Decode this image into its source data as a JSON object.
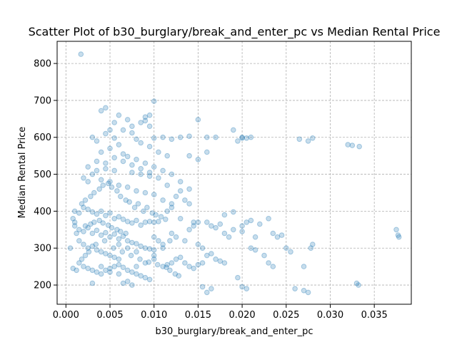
{
  "chart_data": {
    "type": "scatter",
    "title": "Scatter Plot of b30_burglary/break_and_enter_pc vs Median Rental Price",
    "xlabel": "b30_burglary/break_and_enter_pc",
    "ylabel": "Median Rental Price",
    "xlim": [
      -0.001,
      0.0392
    ],
    "ylim": [
      148,
      860
    ],
    "xticks": [
      0.0,
      0.005,
      0.01,
      0.015,
      0.02,
      0.025,
      0.03,
      0.035
    ],
    "xtick_labels": [
      "0.000",
      "0.005",
      "0.010",
      "0.015",
      "0.020",
      "0.025",
      "0.030",
      "0.035"
    ],
    "yticks": [
      200,
      300,
      400,
      500,
      600,
      700,
      800
    ],
    "ytick_labels": [
      "200",
      "300",
      "400",
      "500",
      "600",
      "700",
      "800"
    ],
    "grid": true,
    "color": "#1f77b4",
    "points": [
      [
        0.0017,
        825
      ],
      [
        0.01,
        698
      ],
      [
        0.0045,
        680
      ],
      [
        0.004,
        672
      ],
      [
        0.006,
        660
      ],
      [
        0.009,
        655
      ],
      [
        0.007,
        648
      ],
      [
        0.0085,
        640
      ],
      [
        0.0095,
        630
      ],
      [
        0.005,
        620
      ],
      [
        0.0075,
        612
      ],
      [
        0.003,
        600
      ],
      [
        0.0055,
        598
      ],
      [
        0.008,
        595
      ],
      [
        0.01,
        598
      ],
      [
        0.011,
        600
      ],
      [
        0.012,
        595
      ],
      [
        0.013,
        600
      ],
      [
        0.014,
        603
      ],
      [
        0.016,
        600
      ],
      [
        0.015,
        648
      ],
      [
        0.017,
        600
      ],
      [
        0.02,
        598
      ],
      [
        0.021,
        600
      ],
      [
        0.0195,
        590
      ],
      [
        0.028,
        598
      ],
      [
        0.0275,
        590
      ],
      [
        0.0325,
        578
      ],
      [
        0.0333,
        575
      ],
      [
        0.019,
        620
      ],
      [
        0.006,
        580
      ],
      [
        0.005,
        570
      ],
      [
        0.004,
        560
      ],
      [
        0.0065,
        555
      ],
      [
        0.007,
        548
      ],
      [
        0.008,
        540
      ],
      [
        0.009,
        530
      ],
      [
        0.01,
        520
      ],
      [
        0.0035,
        535
      ],
      [
        0.0025,
        520
      ],
      [
        0.0045,
        515
      ],
      [
        0.0055,
        510
      ],
      [
        0.0075,
        505
      ],
      [
        0.0085,
        500
      ],
      [
        0.0095,
        495
      ],
      [
        0.011,
        510
      ],
      [
        0.012,
        500
      ],
      [
        0.013,
        480
      ],
      [
        0.014,
        460
      ],
      [
        0.003,
        500
      ],
      [
        0.002,
        490
      ],
      [
        0.004,
        485
      ],
      [
        0.005,
        480
      ],
      [
        0.006,
        470
      ],
      [
        0.007,
        465
      ],
      [
        0.008,
        455
      ],
      [
        0.009,
        450
      ],
      [
        0.01,
        445
      ],
      [
        0.011,
        430
      ],
      [
        0.012,
        420
      ],
      [
        0.001,
        400
      ],
      [
        0.0015,
        395
      ],
      [
        0.002,
        410
      ],
      [
        0.0025,
        405
      ],
      [
        0.003,
        398
      ],
      [
        0.0035,
        392
      ],
      [
        0.004,
        400
      ],
      [
        0.0045,
        388
      ],
      [
        0.005,
        395
      ],
      [
        0.0055,
        380
      ],
      [
        0.006,
        385
      ],
      [
        0.0065,
        378
      ],
      [
        0.007,
        372
      ],
      [
        0.0075,
        368
      ],
      [
        0.008,
        375
      ],
      [
        0.0085,
        362
      ],
      [
        0.009,
        370
      ],
      [
        0.0095,
        372
      ],
      [
        0.01,
        370
      ],
      [
        0.0105,
        372
      ],
      [
        0.001,
        360
      ],
      [
        0.0015,
        350
      ],
      [
        0.002,
        345
      ],
      [
        0.0025,
        355
      ],
      [
        0.003,
        340
      ],
      [
        0.0035,
        348
      ],
      [
        0.004,
        335
      ],
      [
        0.0045,
        342
      ],
      [
        0.005,
        330
      ],
      [
        0.0055,
        338
      ],
      [
        0.006,
        325
      ],
      [
        0.0065,
        332
      ],
      [
        0.007,
        320
      ],
      [
        0.0075,
        315
      ],
      [
        0.008,
        312
      ],
      [
        0.0085,
        305
      ],
      [
        0.009,
        300
      ],
      [
        0.0095,
        298
      ],
      [
        0.01,
        295
      ],
      [
        0.011,
        300
      ],
      [
        0.0015,
        320
      ],
      [
        0.002,
        310
      ],
      [
        0.0025,
        300
      ],
      [
        0.003,
        305
      ],
      [
        0.0035,
        295
      ],
      [
        0.004,
        290
      ],
      [
        0.0045,
        285
      ],
      [
        0.005,
        280
      ],
      [
        0.0055,
        275
      ],
      [
        0.006,
        270
      ],
      [
        0.002,
        250
      ],
      [
        0.0025,
        245
      ],
      [
        0.003,
        240
      ],
      [
        0.0035,
        235
      ],
      [
        0.004,
        230
      ],
      [
        0.0045,
        240
      ],
      [
        0.005,
        245
      ],
      [
        0.0055,
        250
      ],
      [
        0.006,
        255
      ],
      [
        0.0065,
        248
      ],
      [
        0.007,
        240
      ],
      [
        0.0075,
        235
      ],
      [
        0.008,
        230
      ],
      [
        0.0085,
        225
      ],
      [
        0.009,
        220
      ],
      [
        0.0095,
        215
      ],
      [
        0.007,
        210
      ],
      [
        0.0065,
        205
      ],
      [
        0.0075,
        200
      ],
      [
        0.003,
        205
      ],
      [
        0.011,
        250
      ],
      [
        0.0115,
        255
      ],
      [
        0.012,
        260
      ],
      [
        0.0125,
        270
      ],
      [
        0.013,
        275
      ],
      [
        0.0135,
        260
      ],
      [
        0.014,
        250
      ],
      [
        0.0145,
        245
      ],
      [
        0.015,
        255
      ],
      [
        0.0155,
        260
      ],
      [
        0.014,
        350
      ],
      [
        0.0145,
        360
      ],
      [
        0.015,
        370
      ],
      [
        0.016,
        370
      ],
      [
        0.0165,
        360
      ],
      [
        0.017,
        355
      ],
      [
        0.0175,
        365
      ],
      [
        0.018,
        340
      ],
      [
        0.0185,
        330
      ],
      [
        0.019,
        350
      ],
      [
        0.02,
        360
      ],
      [
        0.0205,
        370
      ],
      [
        0.021,
        375
      ],
      [
        0.022,
        365
      ],
      [
        0.023,
        380
      ],
      [
        0.0235,
        340
      ],
      [
        0.024,
        330
      ],
      [
        0.0245,
        335
      ],
      [
        0.025,
        300
      ],
      [
        0.0255,
        290
      ],
      [
        0.016,
        280
      ],
      [
        0.0165,
        285
      ],
      [
        0.017,
        270
      ],
      [
        0.0175,
        265
      ],
      [
        0.018,
        260
      ],
      [
        0.0155,
        195
      ],
      [
        0.016,
        180
      ],
      [
        0.0165,
        190
      ],
      [
        0.0195,
        220
      ],
      [
        0.02,
        195
      ],
      [
        0.0205,
        190
      ],
      [
        0.021,
        300
      ],
      [
        0.0215,
        295
      ],
      [
        0.0225,
        280
      ],
      [
        0.023,
        260
      ],
      [
        0.0235,
        250
      ],
      [
        0.026,
        190
      ],
      [
        0.027,
        185
      ],
      [
        0.0275,
        180
      ],
      [
        0.028,
        310
      ],
      [
        0.0278,
        300
      ],
      [
        0.027,
        250
      ],
      [
        0.033,
        205
      ],
      [
        0.0332,
        200
      ],
      [
        0.0375,
        350
      ],
      [
        0.0377,
        335
      ],
      [
        0.0378,
        330
      ],
      [
        0.018,
        390
      ],
      [
        0.02,
        345
      ],
      [
        0.0215,
        330
      ],
      [
        0.013,
        380
      ],
      [
        0.012,
        410
      ],
      [
        0.0115,
        400
      ],
      [
        0.0125,
        440
      ],
      [
        0.013,
        455
      ],
      [
        0.0135,
        430
      ],
      [
        0.014,
        420
      ],
      [
        0.001,
        370
      ],
      [
        0.0008,
        380
      ],
      [
        0.0012,
        340
      ],
      [
        0.0018,
        420
      ],
      [
        0.0022,
        430
      ],
      [
        0.0028,
        440
      ],
      [
        0.0032,
        450
      ],
      [
        0.0038,
        460
      ],
      [
        0.0042,
        470
      ],
      [
        0.0048,
        475
      ],
      [
        0.0052,
        465
      ],
      [
        0.0058,
        455
      ],
      [
        0.0062,
        440
      ],
      [
        0.0068,
        430
      ],
      [
        0.0072,
        425
      ],
      [
        0.0078,
        410
      ],
      [
        0.0082,
        420
      ],
      [
        0.0088,
        400
      ],
      [
        0.0092,
        410
      ],
      [
        0.0098,
        395
      ],
      [
        0.0102,
        390
      ],
      [
        0.0108,
        385
      ],
      [
        0.0113,
        378
      ],
      [
        0.0022,
        360
      ],
      [
        0.0028,
        365
      ],
      [
        0.0032,
        370
      ],
      [
        0.0038,
        375
      ],
      [
        0.0042,
        368
      ],
      [
        0.0048,
        362
      ],
      [
        0.0052,
        355
      ],
      [
        0.0058,
        350
      ],
      [
        0.0062,
        345
      ],
      [
        0.0068,
        340
      ],
      [
        0.0005,
        300
      ],
      [
        0.0008,
        245
      ],
      [
        0.0012,
        240
      ],
      [
        0.0015,
        260
      ],
      [
        0.0018,
        270
      ],
      [
        0.0022,
        280
      ],
      [
        0.0026,
        290
      ],
      [
        0.0034,
        310
      ],
      [
        0.0044,
        320
      ],
      [
        0.0054,
        300
      ],
      [
        0.0064,
        290
      ],
      [
        0.0074,
        280
      ],
      [
        0.0084,
        270
      ],
      [
        0.0094,
        262
      ],
      [
        0.0104,
        255
      ],
      [
        0.0114,
        248
      ],
      [
        0.0118,
        240
      ],
      [
        0.0124,
        230
      ],
      [
        0.0128,
        225
      ],
      [
        0.0045,
        610
      ],
      [
        0.0055,
        640
      ],
      [
        0.0065,
        620
      ],
      [
        0.0075,
        630
      ],
      [
        0.0085,
        585
      ],
      [
        0.0095,
        575
      ],
      [
        0.0105,
        560
      ],
      [
        0.0115,
        550
      ],
      [
        0.009,
        645
      ],
      [
        0.0095,
        660
      ],
      [
        0.0035,
        590
      ],
      [
        0.0025,
        480
      ],
      [
        0.0035,
        510
      ],
      [
        0.0045,
        530
      ],
      [
        0.0055,
        545
      ],
      [
        0.0065,
        535
      ],
      [
        0.0075,
        525
      ],
      [
        0.0085,
        515
      ],
      [
        0.0095,
        505
      ],
      [
        0.0105,
        490
      ],
      [
        0.0115,
        470
      ],
      [
        0.0145,
        370
      ],
      [
        0.015,
        310
      ],
      [
        0.0155,
        300
      ],
      [
        0.0135,
        320
      ],
      [
        0.0125,
        330
      ],
      [
        0.012,
        340
      ],
      [
        0.0118,
        320
      ],
      [
        0.011,
        310
      ],
      [
        0.0105,
        320
      ],
      [
        0.01,
        330
      ],
      [
        0.006,
        230
      ],
      [
        0.005,
        235
      ],
      [
        0.004,
        250
      ],
      [
        0.008,
        250
      ],
      [
        0.009,
        260
      ],
      [
        0.01,
        270
      ],
      [
        0.01,
        280
      ],
      [
        0.008,
        290
      ],
      [
        0.007,
        300
      ],
      [
        0.006,
        310
      ],
      [
        0.015,
        540
      ],
      [
        0.016,
        560
      ],
      [
        0.014,
        550
      ],
      [
        0.019,
        398
      ],
      [
        0.02,
        600
      ],
      [
        0.0205,
        598
      ],
      [
        0.0265,
        595
      ],
      [
        0.032,
        580
      ]
    ]
  }
}
